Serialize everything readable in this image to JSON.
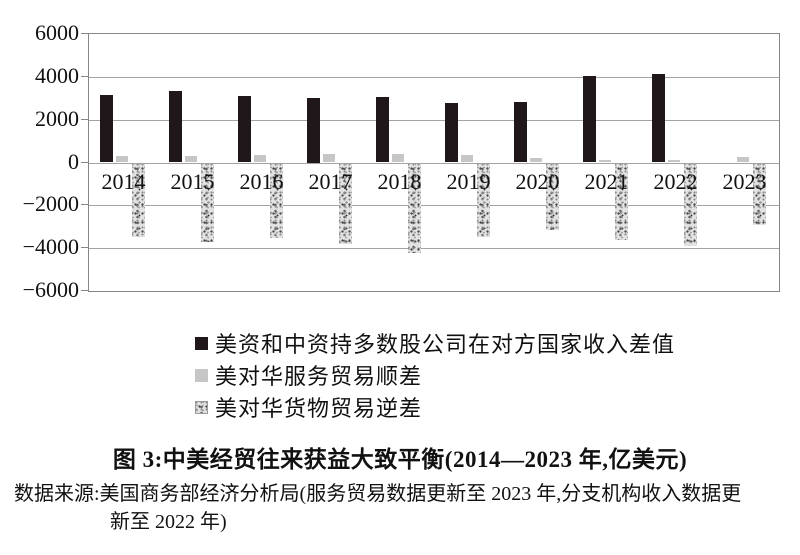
{
  "chart_data": {
    "type": "bar",
    "title": "图 3:中美经贸往来获益大致平衡(2014—2023 年,亿美元)",
    "unit": "亿美元",
    "categories": [
      "2014",
      "2015",
      "2016",
      "2017",
      "2018",
      "2019",
      "2020",
      "2021",
      "2022",
      "2023"
    ],
    "series": [
      {
        "name": "美资和中资持多数股公司在对方国家收入差值",
        "style": "solid-black",
        "color": "#20171a",
        "values": [
          3150,
          3330,
          3100,
          3000,
          3060,
          2800,
          2830,
          4060,
          4130,
          null
        ]
      },
      {
        "name": "美对华服务贸易顺差",
        "style": "solid-gray",
        "color": "#c6c6c6",
        "values": [
          290,
          310,
          370,
          385,
          380,
          330,
          200,
          130,
          100,
          250
        ]
      },
      {
        "name": "美对华货物贸易逆差",
        "style": "speckled",
        "color": "#e2e2e2",
        "values": [
          -3450,
          -3670,
          -3470,
          -3750,
          -4180,
          -3450,
          -3100,
          -3550,
          -3830,
          -2850
        ]
      }
    ],
    "ylim": [
      -6000,
      6000
    ],
    "yticks": [
      6000,
      4000,
      2000,
      0,
      -2000,
      -4000,
      -6000
    ],
    "ytick_labels": [
      "6000",
      "4000",
      "2000",
      "0",
      "−2000",
      "−4000",
      "−6000"
    ],
    "grid": true,
    "legend_position": "bottom-left"
  },
  "caption": {
    "title": "图 3:中美经贸往来获益大致平衡(2014—2023 年,亿美元)"
  },
  "source": {
    "line1": "数据来源:美国商务部经济分析局(服务贸易数据更新至 2023 年,分支机构收入数据更",
    "line2": "新至 2022 年)"
  }
}
